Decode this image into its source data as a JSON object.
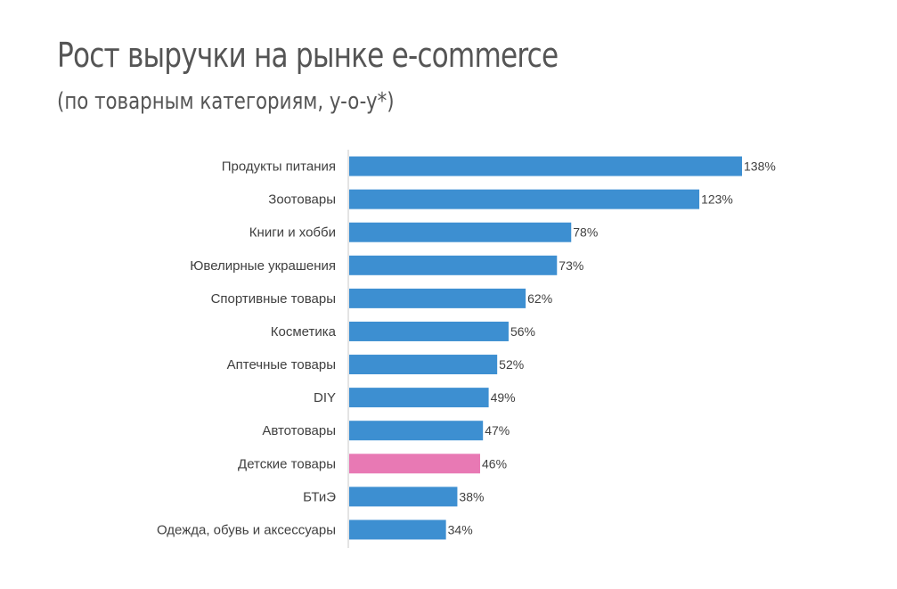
{
  "title": "Рост выручки на рынке e-commerce",
  "subtitle": "(по товарным категориям, y-o-y*)",
  "colors": {
    "bar": "#3d8fd1",
    "highlight": "#e879b4",
    "axis": "#c8c8c8"
  },
  "chart_data": {
    "type": "bar",
    "orientation": "horizontal",
    "categories": [
      "Продукты питания",
      "Зоотовары",
      "Книги и хобби",
      "Ювелирные украшения",
      "Спортивные товары",
      "Косметика",
      "Аптечные товары",
      "DIY",
      "Автотовары",
      "Детские товары",
      "БТиЭ",
      "Одежда, обувь и аксессуары"
    ],
    "values": [
      138,
      123,
      78,
      73,
      62,
      56,
      52,
      49,
      47,
      46,
      38,
      34
    ],
    "value_labels": [
      "138%",
      "123%",
      "78%",
      "73%",
      "62%",
      "56%",
      "52%",
      "49%",
      "47%",
      "46%",
      "38%",
      "34%"
    ],
    "highlighted_category": "Детские товары",
    "xlim": [
      0,
      140
    ],
    "grid": false,
    "legend": "none"
  }
}
